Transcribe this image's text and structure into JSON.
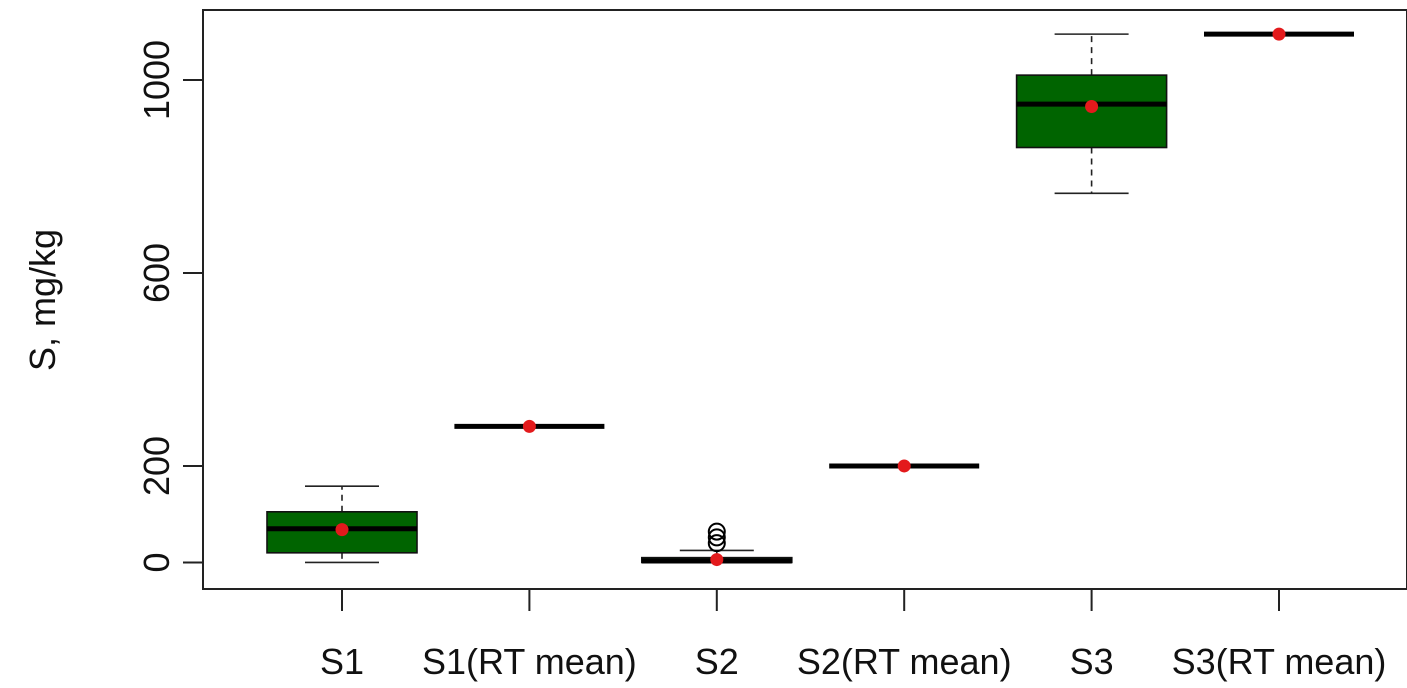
{
  "chart_data": {
    "type": "boxplot",
    "ylabel": "S, mg/kg",
    "ylim": [
      -55,
      1145
    ],
    "yticks": [
      0,
      200,
      600,
      1000
    ],
    "grid": false,
    "categories": [
      "S1",
      "S1(RT mean)",
      "S2",
      "S2(RT mean)",
      "S3",
      "S3(RT mean)"
    ],
    "boxes": [
      {
        "category": "S1",
        "min": 0,
        "q1": 20,
        "median": 70,
        "q3": 105,
        "max": 158,
        "mean": 68,
        "outliers": [],
        "filled": true
      },
      {
        "category": "S1(RT mean)",
        "min": 282,
        "q1": 282,
        "median": 282,
        "q3": 282,
        "max": 282,
        "mean": 282,
        "outliers": [],
        "filled": false
      },
      {
        "category": "S2",
        "min": 0,
        "q1": 0,
        "median": 3,
        "q3": 10,
        "max": 25,
        "mean": 6,
        "outliers": [
          40,
          52,
          64
        ],
        "filled": true
      },
      {
        "category": "S2(RT mean)",
        "min": 200,
        "q1": 200,
        "median": 200,
        "q3": 200,
        "max": 200,
        "mean": 200,
        "outliers": [],
        "filled": false
      },
      {
        "category": "S3",
        "min": 765,
        "q1": 860,
        "median": 950,
        "q3": 1010,
        "max": 1095,
        "mean": 945,
        "outliers": [],
        "filled": true
      },
      {
        "category": "S3(RT mean)",
        "min": 1095,
        "q1": 1095,
        "median": 1095,
        "q3": 1095,
        "max": 1095,
        "mean": 1095,
        "outliers": [],
        "filled": false
      }
    ],
    "colors": {
      "box_fill": "#006400",
      "mean_point": "#e31a1c",
      "median_line": "#000000",
      "outlier": "#000000"
    }
  }
}
